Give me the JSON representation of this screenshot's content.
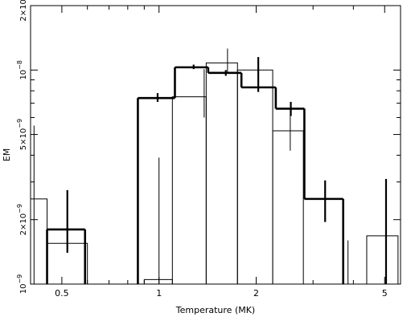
{
  "chart_data": {
    "type": "step-histogram",
    "xlabel": "Temperature (MK)",
    "ylabel": "EM",
    "xscale": "log",
    "yscale": "log",
    "xlim": [
      0.4,
      5.6
    ],
    "ylim": [
      1e-09,
      2e-08
    ],
    "x_ticks": [
      {
        "v": 0.5,
        "label": "0.5"
      },
      {
        "v": 1,
        "label": "1"
      },
      {
        "v": 2,
        "label": "2"
      },
      {
        "v": 5,
        "label": "5"
      }
    ],
    "y_ticks": [
      {
        "v": 1e-09,
        "base": "10",
        "exp": "−9"
      },
      {
        "v": 2e-09,
        "base": "2×10",
        "exp": "−9"
      },
      {
        "v": 5e-09,
        "base": "5×10",
        "exp": "−9"
      },
      {
        "v": 1e-08,
        "base": "10",
        "exp": "−8"
      },
      {
        "v": 2e-08,
        "base": "2×10",
        "exp": "−8"
      }
    ],
    "series": [
      {
        "style": "thin",
        "bins": [
          [
            0.4,
            0.45,
            2.5e-09
          ],
          [
            0.45,
            0.6,
            1.55e-09
          ],
          [
            0.9,
            1.1,
            1.05e-09
          ],
          [
            1.1,
            1.4,
            7.5e-09
          ],
          [
            1.4,
            1.75,
            1.08e-08
          ],
          [
            1.75,
            2.25,
            1e-08
          ],
          [
            2.25,
            2.8,
            5.2e-09
          ],
          [
            2.8,
            3.4,
            1e-09
          ],
          [
            4.4,
            5.5,
            1.68e-09
          ]
        ],
        "errors": [
          {
            "x": 0.41,
            "lo": 1e-09,
            "hi": 5.5e-09
          },
          {
            "x": 1.0,
            "lo": 1e-09,
            "hi": 3.9e-09
          },
          {
            "x": 1.38,
            "lo": 6e-09,
            "hi": 1.01e-08
          },
          {
            "x": 1.63,
            "lo": 9.7e-09,
            "hi": 1.26e-08
          },
          {
            "x": 2.55,
            "lo": 4.2e-09,
            "hi": 6.6e-09
          },
          {
            "x": 3.85,
            "lo": 1e-09,
            "hi": 1.6e-09
          }
        ]
      },
      {
        "style": "thick",
        "bins": [
          [
            0.45,
            0.59,
            1.8e-09
          ],
          [
            0.86,
            1.12,
            7.4e-09
          ],
          [
            1.12,
            1.42,
            1.03e-08
          ],
          [
            1.42,
            1.8,
            9.7e-09
          ],
          [
            1.8,
            2.3,
            8.3e-09
          ],
          [
            2.3,
            2.82,
            6.6e-09
          ],
          [
            2.82,
            3.72,
            2.5e-09
          ]
        ],
        "errors": [
          {
            "x": 0.52,
            "lo": 1.4e-09,
            "hi": 2.75e-09
          },
          {
            "x": 0.99,
            "lo": 7.1e-09,
            "hi": 7.8e-09
          },
          {
            "x": 1.28,
            "lo": 1.01e-08,
            "hi": 1.06e-08
          },
          {
            "x": 1.61,
            "lo": 9.4e-09,
            "hi": 1e-08
          },
          {
            "x": 2.03,
            "lo": 7.9e-09,
            "hi": 1.15e-08
          },
          {
            "x": 2.56,
            "lo": 6.1e-09,
            "hi": 7.1e-09
          },
          {
            "x": 3.27,
            "lo": 1.95e-09,
            "hi": 3.05e-09
          },
          {
            "x": 5.05,
            "lo": 1e-09,
            "hi": 3.1e-09
          }
        ]
      }
    ]
  }
}
